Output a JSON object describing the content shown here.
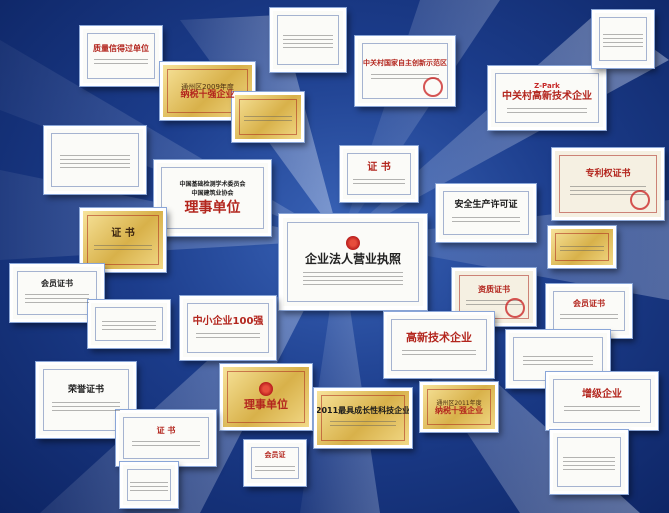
{
  "colors": {
    "background_dark": "#0d2463",
    "background_mid": "#3a64b8",
    "cert_red": "#b3261e",
    "cert_gold": "#d8b14a"
  },
  "certificates": {
    "business_license": "企业法人营业执照",
    "zhongguancun_enterprise": "中关村高新技术企业",
    "safety_license": "安全生产许可证",
    "patent_certificate": "专利权证书",
    "council_unit": "理事单位",
    "certificate_1": "证 书",
    "certificate_2": "证 书",
    "certificate_3": "证 书",
    "top100_sme": "中小企业100强",
    "high_tech_enterprise": "高新技术企业",
    "growth_enterprise": "2011最具成长性科技企业",
    "honor_certificate": "荣誉证书",
    "member_certificate": "会员证书",
    "member_certificate_2": "会员证书",
    "qualification_certificate": "资质证书",
    "director_unit": "理事单位",
    "quality_unit": "质量信得过单位",
    "grade_enterprise": "增级企业",
    "tongzhou_1": "通州区2009年度",
    "tongzhou_2": "通州区2011年度",
    "pioneer_1": "纳税十强企业",
    "pioneer_2": "纳税十强企业",
    "zpark": "Z-Park",
    "zgc_prize_header": "中关村国家自主创新示范区",
    "building_association": "中国基础检测学术委员会",
    "association_line_2": "中国建筑业协会",
    "top_left_title": "质量信得过单位",
    "cert_small_top": "会员证"
  }
}
